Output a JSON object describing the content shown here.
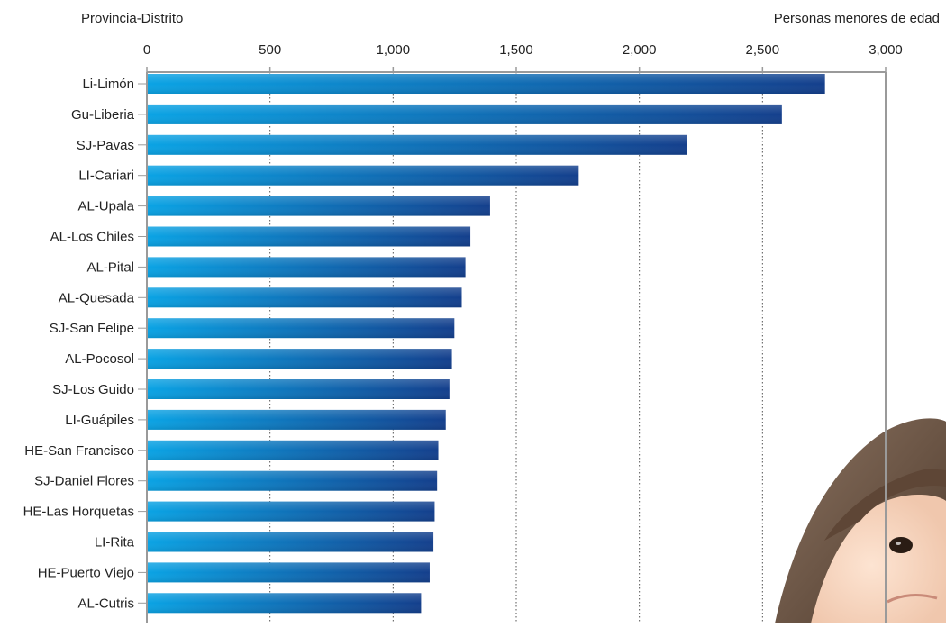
{
  "chart_data": {
    "type": "bar",
    "orientation": "horizontal",
    "category_axis_label": "Provincia-Distrito",
    "value_axis_label": "Personas menores de edad",
    "xlim": [
      0,
      3000
    ],
    "xticks": [
      0,
      500,
      1000,
      1500,
      2000,
      2500,
      3000
    ],
    "xtick_labels": [
      "0",
      "500",
      "1,000",
      "1,500",
      "2,000",
      "2,500",
      "3,000"
    ],
    "grid": "vertical dotted",
    "categories": [
      "Li-Limón",
      "Gu-Liberia",
      "SJ-Pavas",
      "LI-Cariari",
      "AL-Upala",
      "AL-Los Chiles",
      "AL-Pital",
      "AL-Quesada",
      "SJ-San Felipe",
      "AL-Pocosol",
      "SJ-Los Guido",
      "LI-Guápiles",
      "HE-San Francisco",
      "SJ-Daniel Flores",
      "HE-Las Horquetas",
      "LI-Rita",
      "HE-Puerto Viejo",
      "AL-Cutris"
    ],
    "values": [
      2750,
      2575,
      2190,
      1750,
      1390,
      1310,
      1290,
      1275,
      1245,
      1235,
      1225,
      1210,
      1180,
      1175,
      1165,
      1160,
      1145,
      1110
    ],
    "colors": {
      "bar_start": "#0aa3e4",
      "bar_end": "#143f8c",
      "axis": "#9a9a9a",
      "grid": "#555555"
    }
  }
}
